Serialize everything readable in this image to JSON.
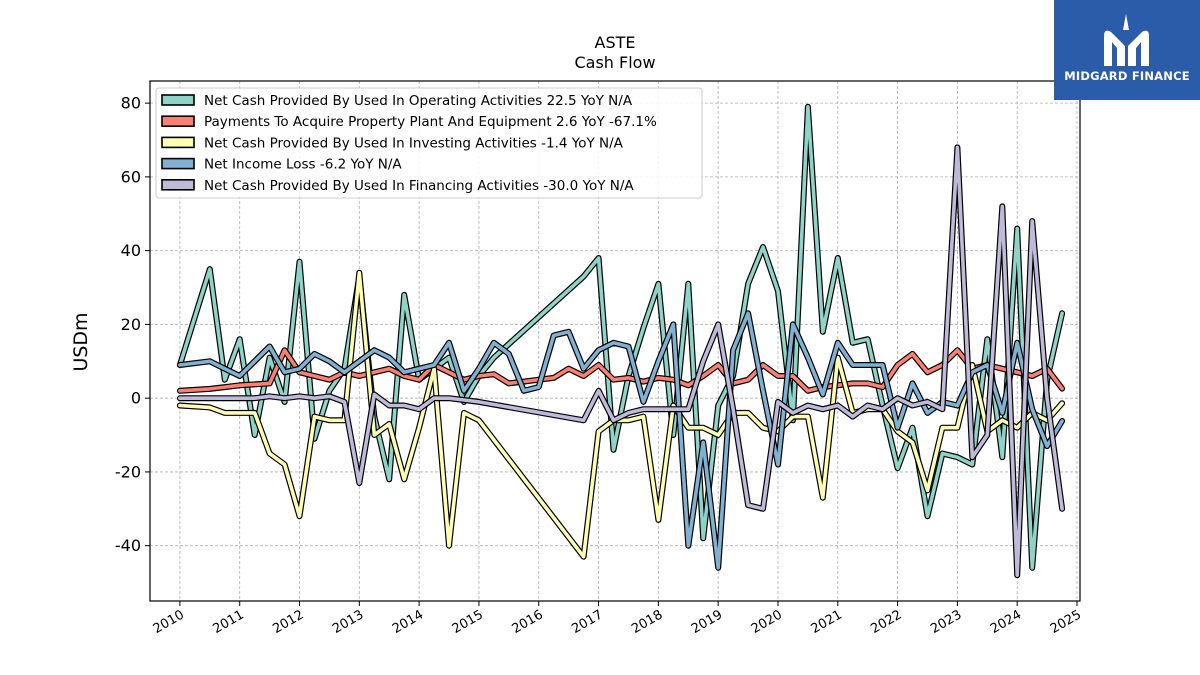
{
  "brand": {
    "name": "MIDGARD FINANCE",
    "logo_icon": "midgard-m-icon",
    "color": "#2a5caa"
  },
  "chart_data": {
    "type": "line",
    "title": "ASTE",
    "subtitle": "Cash Flow",
    "xlabel": "",
    "ylabel": "USDm",
    "xlim": [
      2009.5,
      2025.05
    ],
    "ylim": [
      -55,
      86
    ],
    "x_ticks": [
      "2010",
      "2011",
      "2012",
      "2013",
      "2014",
      "2015",
      "2016",
      "2017",
      "2018",
      "2019",
      "2020",
      "2021",
      "2022",
      "2023",
      "2024",
      "2025"
    ],
    "y_ticks": [
      -40,
      -20,
      0,
      20,
      40,
      60,
      80
    ],
    "grid": true,
    "legend_position": "upper-left",
    "series": [
      {
        "name": "Net Cash Provided By Used In Operating Activities  22.5 YoY N/A",
        "color": "#8dd3c7",
        "points": [
          [
            2010.0,
            9
          ],
          [
            2010.5,
            35
          ],
          [
            2010.75,
            5
          ],
          [
            2011.0,
            16
          ],
          [
            2011.25,
            -10
          ],
          [
            2011.5,
            11
          ],
          [
            2011.75,
            -1
          ],
          [
            2012.0,
            37
          ],
          [
            2012.25,
            -11
          ],
          [
            2012.5,
            2
          ],
          [
            2012.75,
            8
          ],
          [
            2013.0,
            33
          ],
          [
            2013.25,
            -5
          ],
          [
            2013.5,
            -22
          ],
          [
            2013.75,
            28
          ],
          [
            2014.0,
            5
          ],
          [
            2014.25,
            8
          ],
          [
            2014.5,
            11
          ],
          [
            2014.75,
            -1
          ],
          [
            2015.0,
            6
          ],
          [
            2015.25,
            11
          ],
          [
            2016.75,
            33
          ],
          [
            2017.0,
            38
          ],
          [
            2017.25,
            -14
          ],
          [
            2017.5,
            6
          ],
          [
            2017.75,
            19
          ],
          [
            2018.0,
            31
          ],
          [
            2018.25,
            -10
          ],
          [
            2018.5,
            31
          ],
          [
            2018.75,
            -38
          ],
          [
            2019.0,
            -2
          ],
          [
            2019.25,
            6
          ],
          [
            2019.5,
            31
          ],
          [
            2019.75,
            41
          ],
          [
            2020.0,
            29
          ],
          [
            2020.25,
            -6
          ],
          [
            2020.5,
            79
          ],
          [
            2020.75,
            18
          ],
          [
            2021.0,
            38
          ],
          [
            2021.25,
            15
          ],
          [
            2021.5,
            16
          ],
          [
            2021.75,
            -2
          ],
          [
            2022.0,
            -19
          ],
          [
            2022.25,
            -8
          ],
          [
            2022.5,
            -32
          ],
          [
            2022.75,
            -15
          ],
          [
            2023.0,
            -16
          ],
          [
            2023.25,
            -18
          ],
          [
            2023.5,
            16
          ],
          [
            2023.75,
            -16
          ],
          [
            2024.0,
            46
          ],
          [
            2024.25,
            -46
          ],
          [
            2024.5,
            5
          ],
          [
            2024.75,
            23
          ]
        ]
      },
      {
        "name": "Payments To Acquire Property Plant And Equipment  2.6 YoY -67.1%",
        "color": "#fb8072",
        "points": [
          [
            2010.0,
            2
          ],
          [
            2010.5,
            2.5
          ],
          [
            2010.75,
            3
          ],
          [
            2011.0,
            3.5
          ],
          [
            2011.5,
            4
          ],
          [
            2011.75,
            13
          ],
          [
            2012.0,
            7
          ],
          [
            2012.25,
            6
          ],
          [
            2012.5,
            5
          ],
          [
            2012.75,
            7
          ],
          [
            2013.0,
            6
          ],
          [
            2013.25,
            7
          ],
          [
            2013.5,
            8
          ],
          [
            2013.75,
            6
          ],
          [
            2014.0,
            5
          ],
          [
            2014.25,
            9
          ],
          [
            2014.5,
            7
          ],
          [
            2014.75,
            5
          ],
          [
            2015.0,
            6
          ],
          [
            2015.25,
            6.5
          ],
          [
            2015.5,
            4
          ],
          [
            2015.75,
            4.5
          ],
          [
            2016.0,
            5
          ],
          [
            2016.25,
            5.5
          ],
          [
            2016.5,
            8
          ],
          [
            2016.75,
            6
          ],
          [
            2017.0,
            9
          ],
          [
            2017.25,
            5
          ],
          [
            2017.5,
            5.5
          ],
          [
            2017.75,
            4.5
          ],
          [
            2018.0,
            5.5
          ],
          [
            2018.25,
            5
          ],
          [
            2018.5,
            3.5
          ],
          [
            2018.75,
            6
          ],
          [
            2019.0,
            9
          ],
          [
            2019.25,
            4
          ],
          [
            2019.5,
            5
          ],
          [
            2019.75,
            9
          ],
          [
            2020.0,
            6
          ],
          [
            2020.25,
            6
          ],
          [
            2020.5,
            2
          ],
          [
            2020.75,
            3
          ],
          [
            2021.0,
            3.5
          ],
          [
            2021.25,
            4
          ],
          [
            2021.5,
            4
          ],
          [
            2021.75,
            3
          ],
          [
            2022.0,
            9
          ],
          [
            2022.25,
            12
          ],
          [
            2022.5,
            7
          ],
          [
            2022.75,
            9
          ],
          [
            2023.0,
            13
          ],
          [
            2023.25,
            8
          ],
          [
            2023.5,
            9
          ],
          [
            2023.75,
            8
          ],
          [
            2024.0,
            7
          ],
          [
            2024.25,
            6
          ],
          [
            2024.5,
            8
          ],
          [
            2024.75,
            2.6
          ]
        ]
      },
      {
        "name": "Net Cash Provided By Used In Investing Activities  -1.4 YoY N/A",
        "color": "#ffffb3",
        "points": [
          [
            2010.0,
            -2
          ],
          [
            2010.5,
            -2.5
          ],
          [
            2010.75,
            -4
          ],
          [
            2011.0,
            -4
          ],
          [
            2011.25,
            -4
          ],
          [
            2011.5,
            -15
          ],
          [
            2011.75,
            -18
          ],
          [
            2012.0,
            -32
          ],
          [
            2012.25,
            -5
          ],
          [
            2012.5,
            -6
          ],
          [
            2012.75,
            -6
          ],
          [
            2013.0,
            34
          ],
          [
            2013.25,
            -10
          ],
          [
            2013.5,
            -7
          ],
          [
            2013.75,
            -22
          ],
          [
            2014.0,
            -8
          ],
          [
            2014.25,
            8
          ],
          [
            2014.5,
            -40
          ],
          [
            2014.75,
            -4
          ],
          [
            2015.0,
            -6
          ],
          [
            2016.75,
            -43
          ],
          [
            2017.0,
            -9
          ],
          [
            2017.25,
            -6
          ],
          [
            2017.5,
            -6
          ],
          [
            2017.75,
            -5
          ],
          [
            2018.0,
            -33
          ],
          [
            2018.25,
            -2
          ],
          [
            2018.5,
            -8
          ],
          [
            2018.75,
            -8
          ],
          [
            2019.0,
            -10
          ],
          [
            2019.25,
            -4
          ],
          [
            2019.5,
            -4
          ],
          [
            2019.75,
            -8
          ],
          [
            2020.0,
            -9
          ],
          [
            2020.25,
            -5
          ],
          [
            2020.5,
            -5
          ],
          [
            2020.75,
            -27
          ],
          [
            2021.0,
            11
          ],
          [
            2021.25,
            -4
          ],
          [
            2021.5,
            -3
          ],
          [
            2021.75,
            -3
          ],
          [
            2022.0,
            -9
          ],
          [
            2022.25,
            -12
          ],
          [
            2022.5,
            -25
          ],
          [
            2022.75,
            -8
          ],
          [
            2023.0,
            -8
          ],
          [
            2023.25,
            9
          ],
          [
            2023.5,
            -9
          ],
          [
            2023.75,
            -6
          ],
          [
            2024.0,
            -8
          ],
          [
            2024.25,
            -4
          ],
          [
            2024.5,
            -6
          ],
          [
            2024.75,
            -1.4
          ]
        ]
      },
      {
        "name": "Net Income Loss  -6.2 YoY N/A",
        "color": "#80b1d3",
        "points": [
          [
            2010.0,
            9
          ],
          [
            2010.5,
            10
          ],
          [
            2010.75,
            8
          ],
          [
            2011.0,
            6
          ],
          [
            2011.5,
            14
          ],
          [
            2011.75,
            7
          ],
          [
            2012.0,
            8
          ],
          [
            2012.25,
            12
          ],
          [
            2012.5,
            10
          ],
          [
            2012.75,
            7
          ],
          [
            2013.0,
            10
          ],
          [
            2013.25,
            13
          ],
          [
            2013.5,
            11
          ],
          [
            2013.75,
            7
          ],
          [
            2014.0,
            8
          ],
          [
            2014.25,
            9
          ],
          [
            2014.5,
            15
          ],
          [
            2014.75,
            2
          ],
          [
            2015.0,
            8
          ],
          [
            2015.25,
            15
          ],
          [
            2015.5,
            12
          ],
          [
            2015.75,
            2
          ],
          [
            2016.0,
            3
          ],
          [
            2016.25,
            17
          ],
          [
            2016.5,
            18
          ],
          [
            2016.75,
            8
          ],
          [
            2017.0,
            13
          ],
          [
            2017.25,
            15
          ],
          [
            2017.5,
            14
          ],
          [
            2017.75,
            -1
          ],
          [
            2018.0,
            10
          ],
          [
            2018.25,
            20
          ],
          [
            2018.5,
            -40
          ],
          [
            2018.75,
            -12
          ],
          [
            2019.0,
            -46
          ],
          [
            2019.25,
            13
          ],
          [
            2019.5,
            23
          ],
          [
            2019.75,
            2
          ],
          [
            2020.0,
            -18
          ],
          [
            2020.25,
            20
          ],
          [
            2020.5,
            11
          ],
          [
            2020.75,
            1
          ],
          [
            2021.0,
            15
          ],
          [
            2021.25,
            9
          ],
          [
            2021.5,
            9
          ],
          [
            2021.75,
            9
          ],
          [
            2022.0,
            -8
          ],
          [
            2022.25,
            4
          ],
          [
            2022.5,
            -4
          ],
          [
            2022.75,
            -1
          ],
          [
            2023.0,
            -2
          ],
          [
            2023.25,
            7
          ],
          [
            2023.5,
            9
          ],
          [
            2023.75,
            -4
          ],
          [
            2024.0,
            15
          ],
          [
            2024.25,
            -3
          ],
          [
            2024.5,
            -13
          ],
          [
            2024.75,
            -6.2
          ]
        ]
      },
      {
        "name": "Net Cash Provided By Used In Financing Activities  -30.0 YoY N/A",
        "color": "#bebada",
        "points": [
          [
            2010.0,
            0
          ],
          [
            2010.5,
            0
          ],
          [
            2010.75,
            0
          ],
          [
            2011.0,
            0
          ],
          [
            2011.25,
            0
          ],
          [
            2011.5,
            0.5
          ],
          [
            2011.75,
            0
          ],
          [
            2012.0,
            0.5
          ],
          [
            2012.25,
            0
          ],
          [
            2012.5,
            0.5
          ],
          [
            2012.75,
            -1
          ],
          [
            2013.0,
            -23
          ],
          [
            2013.25,
            1
          ],
          [
            2013.5,
            -2
          ],
          [
            2013.75,
            -2
          ],
          [
            2014.0,
            -3
          ],
          [
            2014.25,
            0
          ],
          [
            2014.5,
            0
          ],
          [
            2014.75,
            -0.5
          ],
          [
            2015.0,
            -1
          ],
          [
            2016.75,
            -6
          ],
          [
            2017.0,
            2
          ],
          [
            2017.25,
            -6
          ],
          [
            2017.5,
            -4
          ],
          [
            2017.75,
            -3
          ],
          [
            2018.0,
            -3
          ],
          [
            2018.25,
            -3
          ],
          [
            2018.5,
            -3
          ],
          [
            2018.75,
            10
          ],
          [
            2019.0,
            20
          ],
          [
            2019.25,
            -3
          ],
          [
            2019.5,
            -29
          ],
          [
            2019.75,
            -30
          ],
          [
            2020.0,
            -1
          ],
          [
            2020.25,
            -4
          ],
          [
            2020.5,
            -2
          ],
          [
            2020.75,
            -3
          ],
          [
            2021.0,
            -2
          ],
          [
            2021.25,
            -5
          ],
          [
            2021.5,
            -2
          ],
          [
            2021.75,
            -3
          ],
          [
            2022.0,
            0
          ],
          [
            2022.25,
            -2
          ],
          [
            2022.5,
            -1
          ],
          [
            2022.75,
            -3
          ],
          [
            2023.0,
            68
          ],
          [
            2023.25,
            -16
          ],
          [
            2023.5,
            -10
          ],
          [
            2023.75,
            52
          ],
          [
            2024.0,
            -48
          ],
          [
            2024.25,
            48
          ],
          [
            2024.5,
            0
          ],
          [
            2024.75,
            -30
          ]
        ]
      }
    ]
  }
}
